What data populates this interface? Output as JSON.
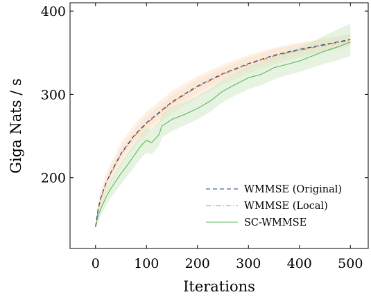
{
  "chart_data": {
    "type": "line",
    "title": "",
    "xlabel": "Iterations",
    "ylabel": "Giga Nats / s",
    "xlim": [
      -50,
      535
    ],
    "ylim": [
      115,
      410
    ],
    "xticks": [
      0,
      100,
      200,
      300,
      400,
      500
    ],
    "yticks": [
      200,
      300,
      400
    ],
    "grid": false,
    "legend_position": "bottom-right",
    "series": [
      {
        "name": "WMMSE (Original)",
        "style": "dashed",
        "color": "#1f3a93",
        "x": [
          0,
          5,
          10,
          20,
          30,
          50,
          75,
          100,
          150,
          200,
          250,
          300,
          350,
          400,
          450,
          500
        ],
        "y": [
          141,
          162,
          175,
          193,
          206,
          229,
          250,
          266,
          291,
          310,
          325,
          337,
          347,
          354,
          360,
          366
        ],
        "band_lower": [
          141,
          158,
          170,
          187,
          200,
          222,
          243,
          258,
          283,
          302,
          318,
          330,
          340,
          347,
          353,
          359
        ],
        "band_upper": [
          141,
          166,
          180,
          199,
          212,
          236,
          257,
          274,
          299,
          318,
          332,
          344,
          354,
          361,
          367,
          373
        ]
      },
      {
        "name": "WMMSE (Local)",
        "style": "dash-dot",
        "color": "#e8743b",
        "x": [
          0,
          5,
          10,
          20,
          30,
          50,
          75,
          100,
          150,
          200,
          250,
          300,
          350,
          400,
          450,
          500
        ],
        "y": [
          141,
          161,
          174,
          192,
          205,
          228,
          249,
          265,
          290,
          309,
          324,
          336,
          346,
          353,
          359,
          365
        ],
        "band_lower": [
          141,
          153,
          164,
          180,
          193,
          215,
          236,
          252,
          277,
          296,
          312,
          325,
          336,
          344,
          351,
          358
        ],
        "band_upper": [
          141,
          170,
          185,
          204,
          218,
          242,
          263,
          279,
          304,
          322,
          336,
          347,
          356,
          362,
          367,
          372
        ]
      },
      {
        "name": "SC-WMMSE",
        "style": "solid",
        "color": "#5cb85c",
        "x": [
          0,
          5,
          10,
          20,
          30,
          40,
          50,
          60,
          75,
          90,
          100,
          110,
          125,
          130,
          150,
          175,
          200,
          225,
          250,
          275,
          300,
          325,
          350,
          375,
          400,
          425,
          450,
          475,
          500
        ],
        "y": [
          141,
          154,
          162,
          176,
          187,
          196,
          205,
          213,
          226,
          239,
          245,
          242,
          252,
          262,
          270,
          276,
          283,
          292,
          304,
          312,
          320,
          324,
          332,
          336,
          340,
          346,
          352,
          357,
          363
        ],
        "band_lower": [
          141,
          147,
          154,
          166,
          176,
          184,
          192,
          200,
          212,
          224,
          230,
          228,
          238,
          248,
          256,
          263,
          270,
          279,
          291,
          299,
          306,
          311,
          318,
          323,
          327,
          332,
          337,
          341,
          346
        ],
        "band_upper": [
          141,
          161,
          171,
          186,
          198,
          208,
          218,
          227,
          240,
          253,
          260,
          257,
          267,
          277,
          285,
          291,
          298,
          307,
          318,
          326,
          334,
          339,
          346,
          352,
          357,
          363,
          371,
          378,
          385
        ]
      }
    ]
  }
}
